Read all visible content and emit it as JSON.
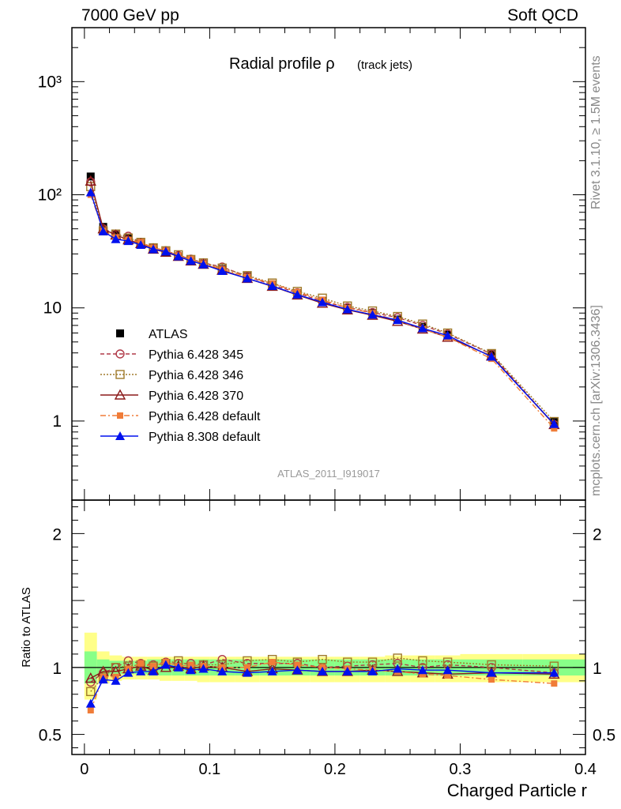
{
  "header": {
    "left": "7000 GeV pp",
    "right": "Soft QCD"
  },
  "side_labels": {
    "rivet": "Rivet 3.1.10, ≥ 1.5M events",
    "mcplots": "mcplots.cern.ch [arXiv:1306.3436]"
  },
  "colors": {
    "atlas": "#000000",
    "p345": "#b03a48",
    "p346": "#a07a2a",
    "p370": "#8b1a1a",
    "pdef": "#f07c38",
    "p8": "#0010ee",
    "band_inner": "#88ff88",
    "band_outer": "#ffff88"
  },
  "chart_data": [
    {
      "type": "line",
      "title": "Radial profile ρ",
      "title_suffix": "(track jets)",
      "yscale": "log",
      "ylim": [
        0.2,
        3000
      ],
      "xlim": [
        -0.01,
        0.4
      ],
      "ytick_labels": [
        "10³",
        "10²",
        "10",
        "1"
      ],
      "analysis_label": "ATLAS_2011_I919017",
      "x": [
        0.005,
        0.015,
        0.025,
        0.035,
        0.045,
        0.055,
        0.065,
        0.075,
        0.085,
        0.095,
        0.11,
        0.13,
        0.15,
        0.17,
        0.19,
        0.21,
        0.23,
        0.25,
        0.27,
        0.29,
        0.325,
        0.375
      ],
      "series": [
        {
          "name": "ATLAS",
          "key": "atlas",
          "values": [
            145,
            52,
            45,
            41,
            37,
            34,
            31,
            28.5,
            26.5,
            24.5,
            22,
            19,
            16,
            13.5,
            11.5,
            10,
            9,
            7.9,
            6.8,
            5.8,
            3.9,
            0.98
          ]
        },
        {
          "name": "Pythia 6.428 345",
          "key": "p345",
          "values": [
            130,
            50,
            45,
            43,
            38,
            34,
            32,
            29,
            27,
            25,
            23,
            19,
            16,
            13.6,
            11.4,
            10.1,
            9.1,
            8.2,
            7.0,
            5.9,
            3.9,
            0.93
          ]
        },
        {
          "name": "Pythia 6.428 346",
          "key": "p346",
          "values": [
            118,
            48,
            45,
            41.5,
            38,
            34,
            32,
            29.5,
            26.8,
            25,
            22.5,
            19.3,
            16.6,
            14,
            12.2,
            10.4,
            9.4,
            8.4,
            7.2,
            6.0,
            3.95,
            0.99
          ]
        },
        {
          "name": "Pythia 6.428 370",
          "key": "p370",
          "values": [
            132,
            50,
            44,
            40,
            37,
            33,
            31,
            28.5,
            26,
            24.3,
            21.5,
            18.2,
            15.5,
            13,
            11,
            9.6,
            8.6,
            7.6,
            6.5,
            5.5,
            3.75,
            0.93
          ]
        },
        {
          "name": "Pythia 6.428 default",
          "key": "pdef",
          "values": [
            100,
            48,
            42,
            40,
            38,
            34,
            32,
            29,
            27,
            24.7,
            22,
            18.8,
            16.5,
            13.8,
            11.8,
            10,
            9,
            7.7,
            6.5,
            5.5,
            3.55,
            0.86
          ]
        },
        {
          "name": "Pythia 8.308 default",
          "key": "p8",
          "values": [
            105,
            47.5,
            40.5,
            39,
            36,
            33,
            31.5,
            28.5,
            26,
            24.2,
            21.2,
            18.2,
            15.6,
            13.1,
            11.2,
            9.7,
            8.7,
            7.8,
            6.6,
            5.7,
            3.7,
            0.94
          ]
        }
      ]
    },
    {
      "type": "line",
      "ylabel": "Ratio to ATLAS",
      "xlabel": "Charged Particle r",
      "ylim": [
        0.35,
        2.25
      ],
      "xlim": [
        -0.01,
        0.4
      ],
      "ytick_labels": [
        "2",
        "1",
        "0.5"
      ],
      "xtick_labels": [
        "0",
        "0.1",
        "0.2",
        "0.3",
        "0.4"
      ],
      "x": [
        0.005,
        0.015,
        0.025,
        0.035,
        0.045,
        0.055,
        0.065,
        0.075,
        0.085,
        0.095,
        0.11,
        0.13,
        0.15,
        0.17,
        0.19,
        0.21,
        0.23,
        0.25,
        0.27,
        0.29,
        0.325,
        0.375
      ],
      "uncertainty": {
        "x_edges": [
          0,
          0.01,
          0.02,
          0.03,
          0.04,
          0.05,
          0.06,
          0.07,
          0.08,
          0.09,
          0.1,
          0.12,
          0.14,
          0.16,
          0.18,
          0.2,
          0.22,
          0.24,
          0.26,
          0.28,
          0.3,
          0.35,
          0.4
        ],
        "inner_low": [
          0.88,
          0.94,
          0.95,
          0.95,
          0.95,
          0.94,
          0.94,
          0.94,
          0.94,
          0.94,
          0.94,
          0.94,
          0.94,
          0.94,
          0.94,
          0.94,
          0.94,
          0.94,
          0.94,
          0.94,
          0.94,
          0.94
        ],
        "inner_high": [
          1.12,
          1.06,
          1.05,
          1.05,
          1.05,
          1.06,
          1.06,
          1.06,
          1.06,
          1.06,
          1.06,
          1.06,
          1.06,
          1.06,
          1.06,
          1.06,
          1.06,
          1.06,
          1.06,
          1.06,
          1.06,
          1.06
        ],
        "outer_low": [
          0.76,
          0.88,
          0.9,
          0.91,
          0.91,
          0.91,
          0.9,
          0.9,
          0.9,
          0.89,
          0.89,
          0.89,
          0.89,
          0.89,
          0.89,
          0.89,
          0.89,
          0.89,
          0.89,
          0.89,
          0.89,
          0.89
        ],
        "outer_high": [
          1.26,
          1.12,
          1.09,
          1.08,
          1.08,
          1.08,
          1.08,
          1.08,
          1.08,
          1.08,
          1.08,
          1.08,
          1.08,
          1.08,
          1.08,
          1.08,
          1.08,
          1.09,
          1.09,
          1.09,
          1.1,
          1.1
        ]
      },
      "series": [
        {
          "name": "Pythia 6.428 345",
          "key": "p345",
          "values": [
            0.89,
            0.96,
            1.0,
            1.05,
            1.03,
            1.02,
            1.04,
            1.03,
            1.03,
            1.02,
            1.06,
            1.03,
            1.03,
            1.03,
            1.0,
            1.01,
            1.02,
            1.03,
            1.0,
            1.02,
            1.0,
            0.96
          ]
        },
        {
          "name": "Pythia 6.428 346",
          "key": "p346",
          "values": [
            0.82,
            0.93,
            1.0,
            1.01,
            1.02,
            1.01,
            1.03,
            1.05,
            1.01,
            1.02,
            1.02,
            1.05,
            1.06,
            1.04,
            1.06,
            1.04,
            1.04,
            1.07,
            1.05,
            1.04,
            1.02,
            1.01
          ]
        },
        {
          "name": "Pythia 6.428 370",
          "key": "p370",
          "values": [
            0.92,
            0.97,
            0.97,
            0.99,
            1.01,
            0.98,
            1.0,
            1.01,
            0.99,
            1.01,
            1.0,
            0.97,
            0.99,
            0.98,
            0.97,
            0.97,
            0.98,
            0.97,
            0.96,
            0.95,
            0.96,
            0.95
          ]
        },
        {
          "name": "Pythia 6.428 default",
          "key": "pdef",
          "values": [
            0.68,
            0.93,
            0.93,
            0.99,
            1.03,
            1.01,
            1.04,
            1.01,
            1.02,
            1.01,
            1.0,
            1.0,
            1.04,
            1.02,
            1.0,
            0.99,
            0.98,
            0.97,
            0.95,
            0.94,
            0.91,
            0.88
          ]
        },
        {
          "name": "Pythia 8.308 default",
          "key": "p8",
          "values": [
            0.73,
            0.91,
            0.9,
            0.96,
            0.97,
            0.97,
            1.02,
            1.0,
            0.98,
            0.99,
            0.97,
            0.96,
            0.97,
            0.98,
            0.97,
            0.97,
            0.97,
            0.99,
            0.98,
            0.98,
            0.96,
            0.96
          ]
        }
      ]
    }
  ]
}
